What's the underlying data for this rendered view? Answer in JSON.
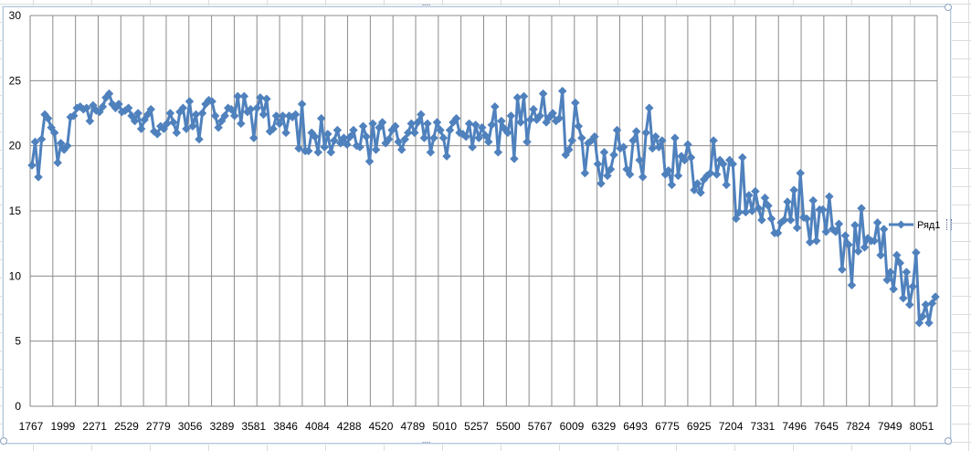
{
  "chart_data": {
    "type": "line",
    "title": "",
    "xlabel": "",
    "ylabel": "",
    "ylim": [
      0,
      30
    ],
    "y_ticks": [
      "0",
      "5",
      "10",
      "15",
      "20",
      "25",
      "30"
    ],
    "x_tick_labels": [
      "1767",
      "1999",
      "2271",
      "2529",
      "2779",
      "3056",
      "3289",
      "3581",
      "3846",
      "4084",
      "4288",
      "4520",
      "4789",
      "5010",
      "5257",
      "5500",
      "5767",
      "6009",
      "6329",
      "6493",
      "6775",
      "6925",
      "7204",
      "7331",
      "7496",
      "7645",
      "7824",
      "7949",
      "8051"
    ],
    "grid": true,
    "legend_position": "right",
    "marker": "diamond",
    "series_color": "#4f81bd",
    "series": [
      {
        "name": "Ряд1",
        "values": [
          18.5,
          20.3,
          17.6,
          20.5,
          22.4,
          22.1,
          21.4,
          21.0,
          18.7,
          20.2,
          19.7,
          20.0,
          22.2,
          22.3,
          22.9,
          23.0,
          22.8,
          22.9,
          21.9,
          23.1,
          22.7,
          22.6,
          23.0,
          23.7,
          24.0,
          23.2,
          22.9,
          23.2,
          22.6,
          22.7,
          22.9,
          22.3,
          21.9,
          22.5,
          21.3,
          22.0,
          22.4,
          22.8,
          21.1,
          20.9,
          21.5,
          21.3,
          21.7,
          22.5,
          21.8,
          21.0,
          22.6,
          22.9,
          21.3,
          23.4,
          21.5,
          22.4,
          20.5,
          22.5,
          23.2,
          23.5,
          23.4,
          22.3,
          21.4,
          21.9,
          22.3,
          22.9,
          22.8,
          22.3,
          23.8,
          21.7,
          23.8,
          22.6,
          22.8,
          20.6,
          22.9,
          23.7,
          22.4,
          23.6,
          21.1,
          21.3,
          22.3,
          21.7,
          22.3,
          21.0,
          22.3,
          22.2,
          22.4,
          19.8,
          23.2,
          19.6,
          19.6,
          21.0,
          20.7,
          19.5,
          22.1,
          19.9,
          20.9,
          19.5,
          20.4,
          21.2,
          20.2,
          20.6,
          20.1,
          20.7,
          21.2,
          20.0,
          19.9,
          21.5,
          20.7,
          18.8,
          21.7,
          19.7,
          21.4,
          21.8,
          20.2,
          20.5,
          21.2,
          21.5,
          20.3,
          19.7,
          20.5,
          21.0,
          21.7,
          21.0,
          21.8,
          22.4,
          20.6,
          21.7,
          19.5,
          20.6,
          21.8,
          21.2,
          20.6,
          19.2,
          21.2,
          21.8,
          22.1,
          21.0,
          20.9,
          20.7,
          21.7,
          19.9,
          21.6,
          20.6,
          21.4,
          20.8,
          20.3,
          21.6,
          23.0,
          19.5,
          21.9,
          21.3,
          21.0,
          22.3,
          19.0,
          23.7,
          21.8,
          23.8,
          20.3,
          22.0,
          22.8,
          22.0,
          22.3,
          24.0,
          21.8,
          22.2,
          22.5,
          21.9,
          22.1,
          24.2,
          19.3,
          19.7,
          20.4,
          23.3,
          21.5,
          20.6,
          17.9,
          20.2,
          20.4,
          20.7,
          18.6,
          17.1,
          19.5,
          17.7,
          18.2,
          19.3,
          21.2,
          19.8,
          19.9,
          18.2,
          17.8,
          20.4,
          21.1,
          18.9,
          17.6,
          21.0,
          22.9,
          19.8,
          20.7,
          19.9,
          20.4,
          17.8,
          18.1,
          17.0,
          20.6,
          17.7,
          19.2,
          18.9,
          20.1,
          19.1,
          16.6,
          17.1,
          16.4,
          17.4,
          17.7,
          17.9,
          20.4,
          17.8,
          18.9,
          18.6,
          17.0,
          18.9,
          18.6,
          14.4,
          14.9,
          19.1,
          14.9,
          16.2,
          15.0,
          16.5,
          15.2,
          14.3,
          16.0,
          15.4,
          14.4,
          13.3,
          13.3,
          14.1,
          14.3,
          15.7,
          14.3,
          16.6,
          13.7,
          17.9,
          14.5,
          14.4,
          12.6,
          15.8,
          12.7,
          15.1,
          15.1,
          13.4,
          16.1,
          13.6,
          13.4,
          14.0,
          10.5,
          13.1,
          12.4,
          9.3,
          13.9,
          11.9,
          15.2,
          12.2,
          12.9,
          12.7,
          12.7,
          14.1,
          11.6,
          13.6,
          9.7,
          10.3,
          9.0,
          11.6,
          11.0,
          8.3,
          10.3,
          7.8,
          9.2,
          11.8,
          6.4,
          6.9,
          7.8,
          6.4,
          7.9,
          8.4
        ]
      }
    ]
  }
}
